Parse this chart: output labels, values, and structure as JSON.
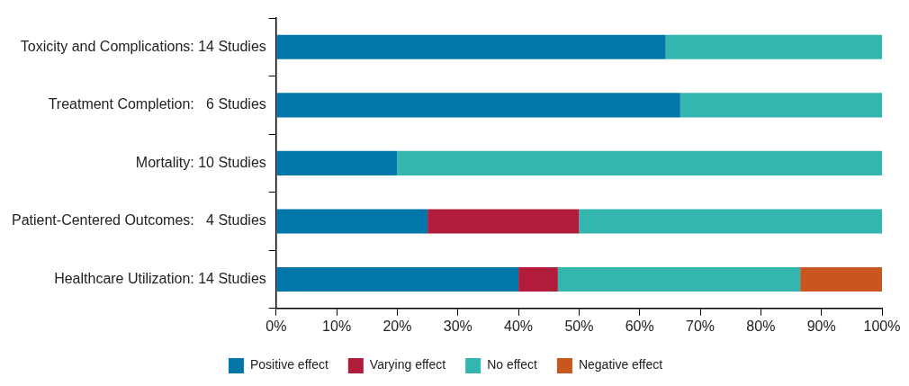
{
  "chart_data": {
    "type": "bar",
    "orientation": "horizontal",
    "stacked": true,
    "categories": [
      "Toxicity and Complications: 14 Studies",
      "Treatment Completion:   6 Studies",
      "Mortality: 10 Studies",
      "Patient-Centered Outcomes:   4 Studies",
      "Healthcare Utilization: 14 Studies"
    ],
    "series": [
      {
        "name": "Positive effect",
        "color": "#0077a8",
        "values": [
          64.3,
          66.7,
          20,
          25,
          40
        ]
      },
      {
        "name": "Varying effect",
        "color": "#b01c3a",
        "values": [
          0,
          0,
          0,
          25,
          6.5
        ]
      },
      {
        "name": "No effect",
        "color": "#33b5b0",
        "values": [
          35.7,
          33.3,
          80,
          50,
          40
        ]
      },
      {
        "name": "Negative effect",
        "color": "#c8561e",
        "values": [
          0,
          0,
          0,
          0,
          13.5
        ]
      }
    ],
    "xlim": [
      0,
      100
    ],
    "xticks": [
      {
        "value": 0,
        "label": "0%"
      },
      {
        "value": 10,
        "label": "10%"
      },
      {
        "value": 20,
        "label": "20%"
      },
      {
        "value": 30,
        "label": "30%"
      },
      {
        "value": 40,
        "label": "40%"
      },
      {
        "value": 50,
        "label": "50%"
      },
      {
        "value": 60,
        "label": "60%"
      },
      {
        "value": 70,
        "label": "70%"
      },
      {
        "value": 80,
        "label": "80%"
      },
      {
        "value": 90,
        "label": "90%"
      },
      {
        "value": 100,
        "label": "100%"
      }
    ],
    "grid": false,
    "legend": "bottom"
  }
}
